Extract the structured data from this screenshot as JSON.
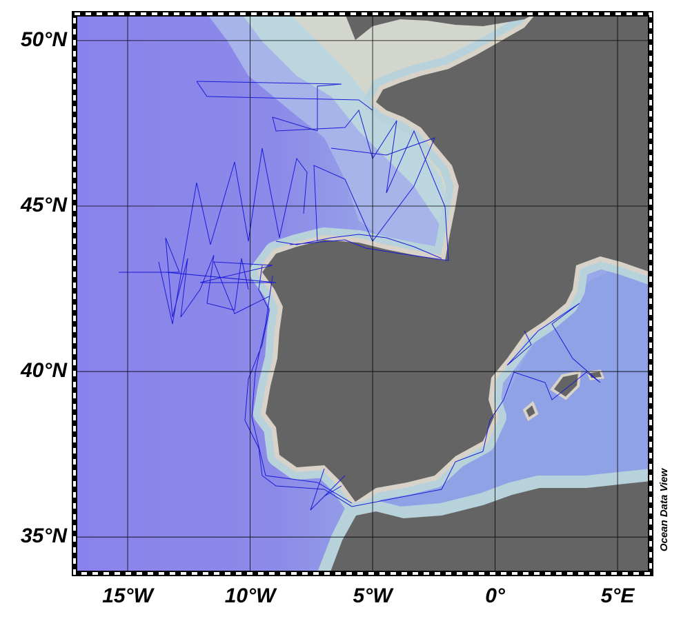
{
  "map": {
    "xlim": [
      -17.17,
      6.35
    ],
    "ylim": [
      33.9,
      50.81
    ],
    "xticks": [
      {
        "value": -15,
        "label": "15°W"
      },
      {
        "value": -10,
        "label": "10°W"
      },
      {
        "value": -5,
        "label": "5°W"
      },
      {
        "value": 0,
        "label": "0°"
      },
      {
        "value": 5,
        "label": "5°E"
      }
    ],
    "yticks": [
      {
        "value": 35,
        "label": "35°N"
      },
      {
        "value": 40,
        "label": "40°N"
      },
      {
        "value": 45,
        "label": "45°N"
      },
      {
        "value": 50,
        "label": "50°N"
      }
    ],
    "grid": true,
    "track_color": "#1a1ad8",
    "watermark": "Ocean Data View"
  }
}
